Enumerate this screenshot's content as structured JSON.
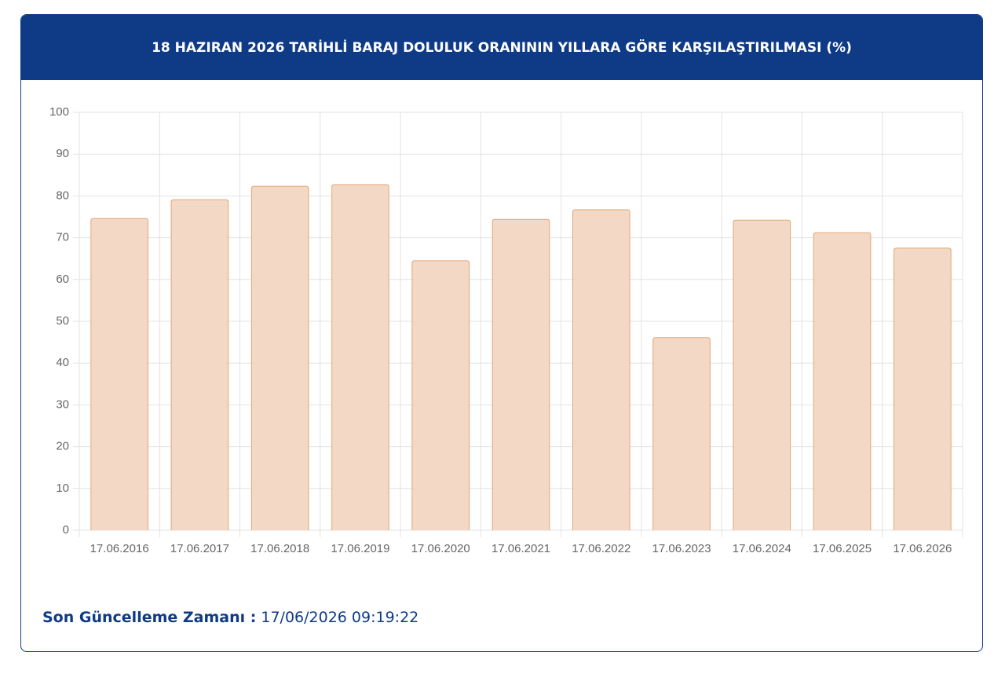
{
  "chart_data": {
    "type": "bar",
    "title": "18 HAZIRAN 2026 TARİHLİ BARAJ DOLULUK ORANININ YILLARA GÖRE KARŞILAŞTIRILMASI (%)",
    "categories": [
      "17.06.2016",
      "17.06.2017",
      "17.06.2018",
      "17.06.2019",
      "17.06.2020",
      "17.06.2021",
      "17.06.2022",
      "17.06.2023",
      "17.06.2024",
      "17.06.2025",
      "17.06.2026"
    ],
    "values": [
      74.6,
      79.1,
      82.3,
      82.7,
      64.5,
      74.4,
      76.7,
      46.1,
      74.2,
      71.2,
      67.5
    ],
    "color": "#f3d9c5",
    "border_color": "#e2a574",
    "ylim": [
      0,
      100
    ],
    "yticks": [
      0,
      10,
      20,
      30,
      40,
      50,
      60,
      70,
      80,
      90,
      100
    ],
    "grid": true
  },
  "update": {
    "label": "Son Güncelleme Zamanı :",
    "value": "17/06/2026 09:19:22"
  }
}
